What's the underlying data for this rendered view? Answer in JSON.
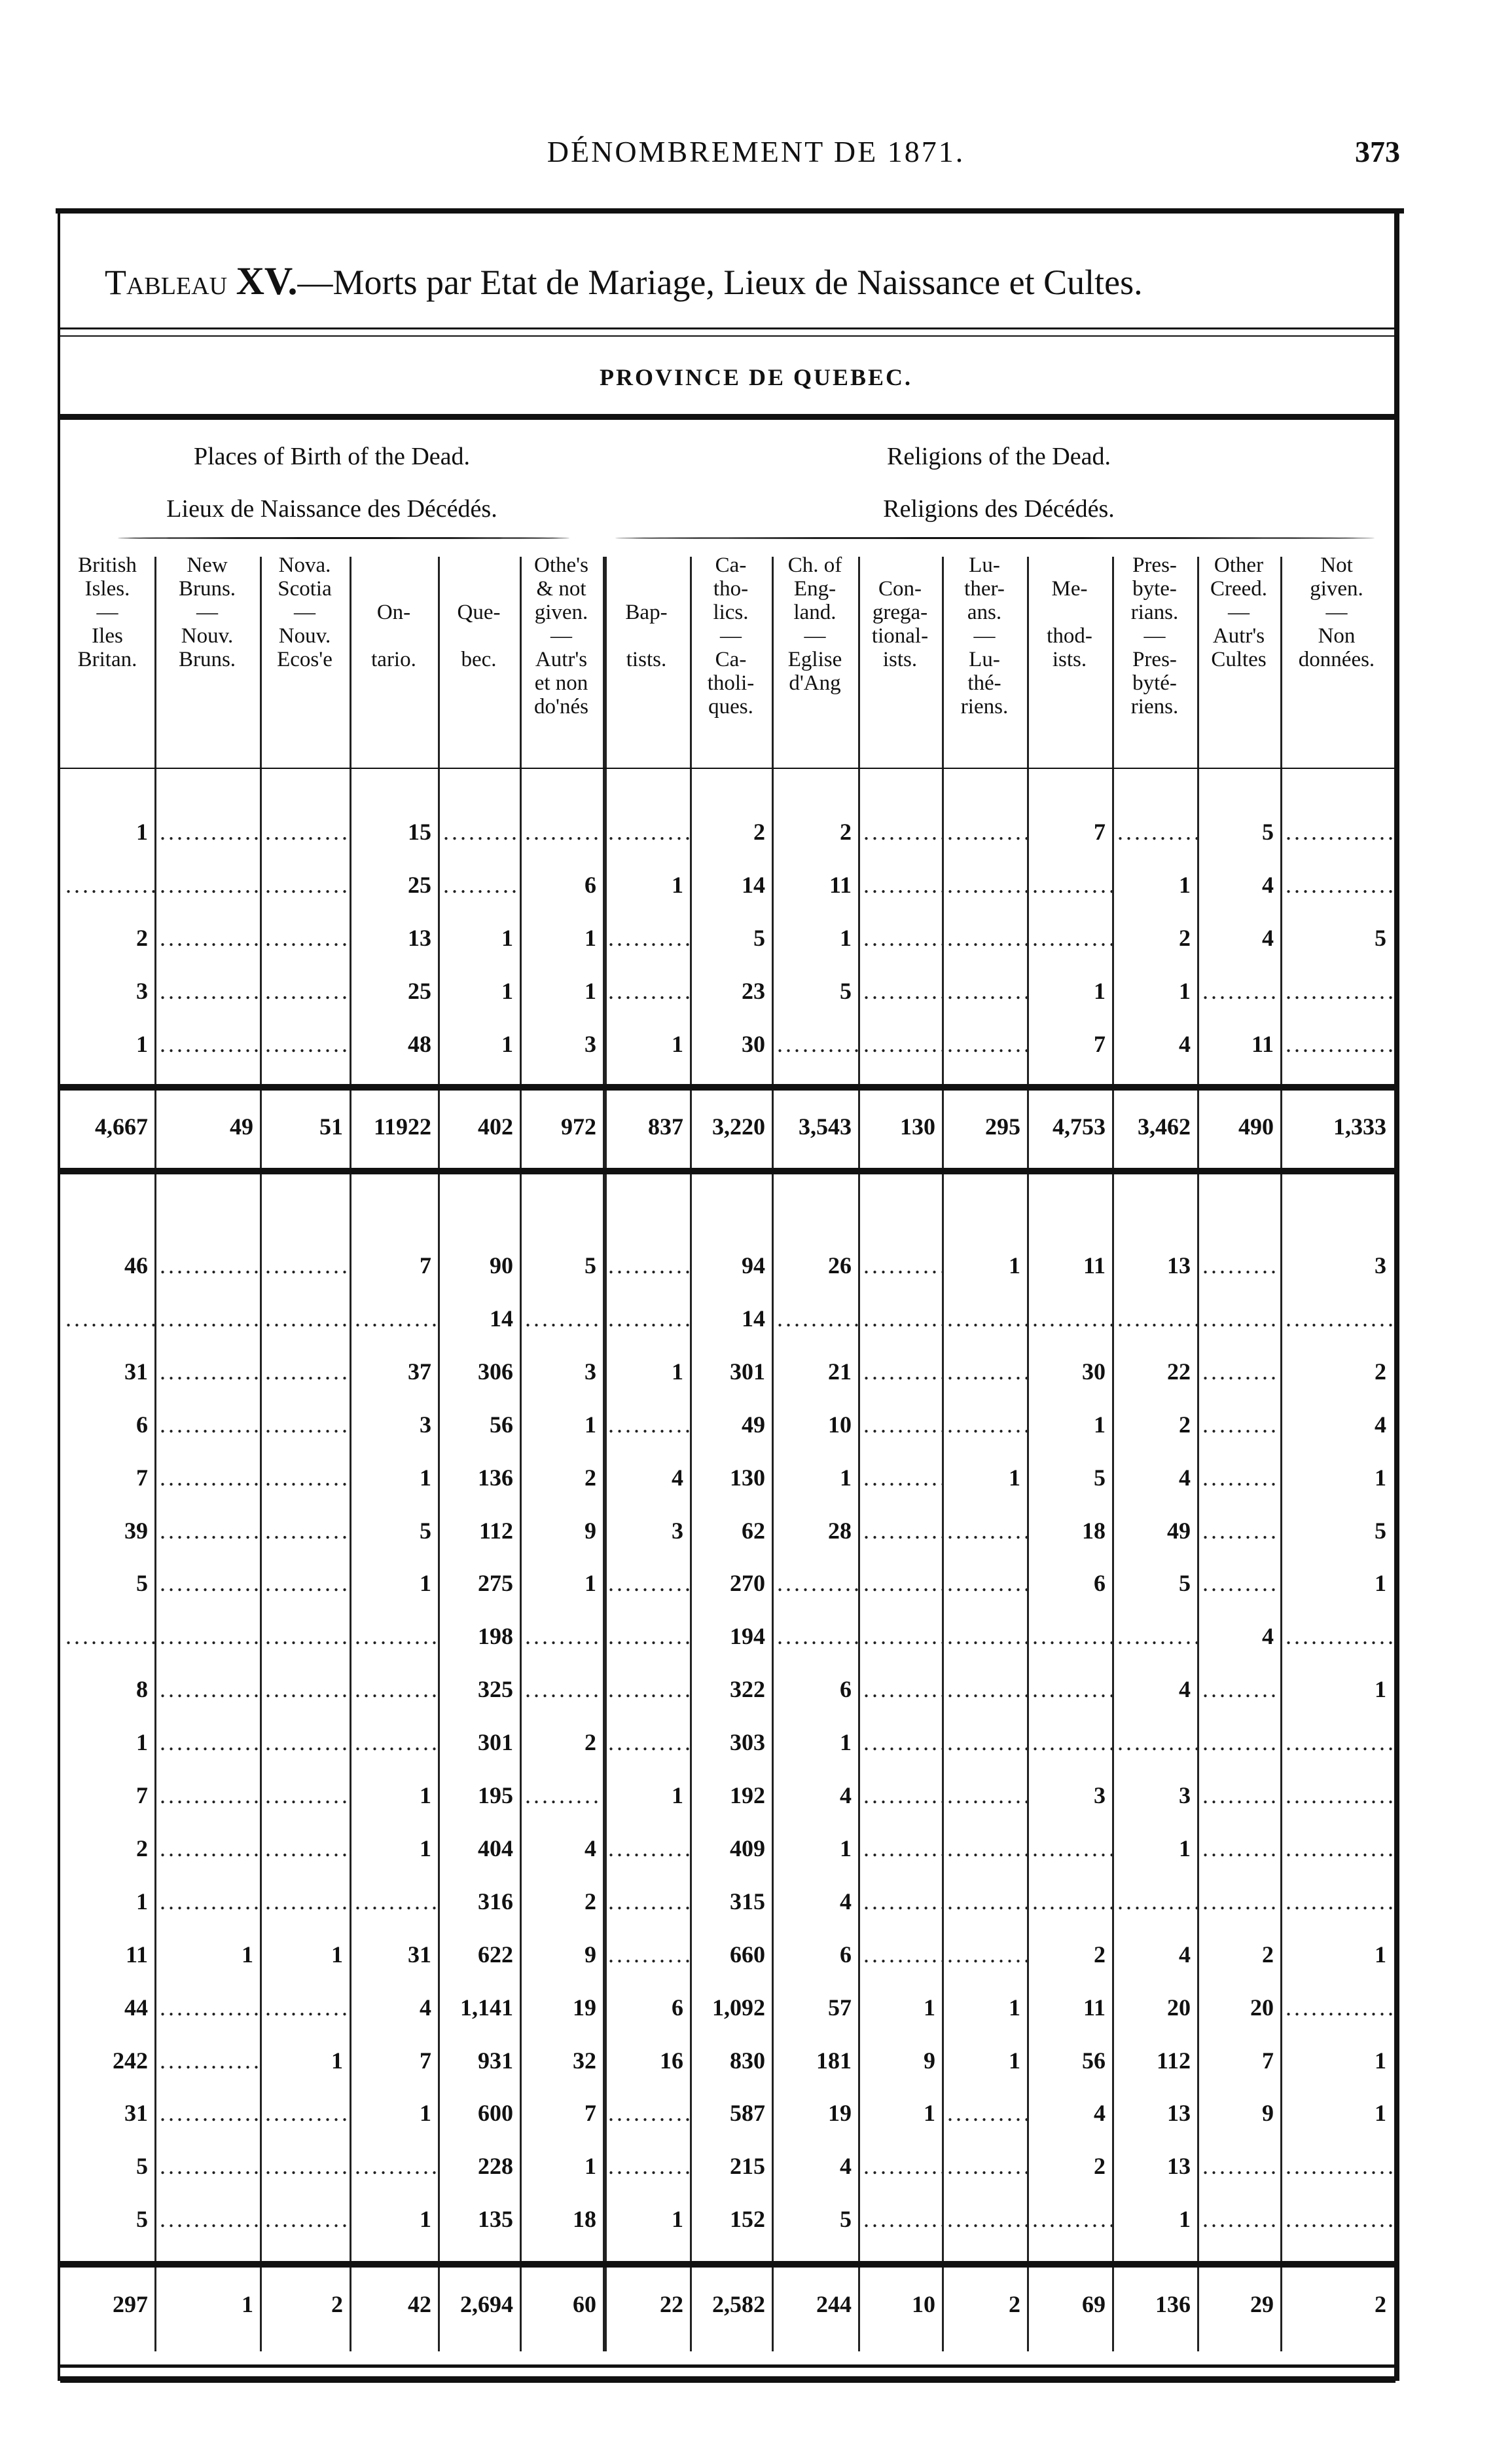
{
  "running_head": "DÉNOMBREMENT DE 1871.",
  "page_number": "373",
  "title_prefix": "Tableau",
  "title_number": "XV.",
  "title_text": "—Morts par Etat de Mariage, Lieux de Naissance et Cultes.",
  "province": "PROVINCE DE QUEBEC.",
  "groups": {
    "birth_en": "Places of Birth of the Dead.",
    "birth_fr": "Lieux de Naissance des Décédés.",
    "religion_en": "Religions of the Dead.",
    "religion_fr": "Religions des Décédés."
  },
  "columns": [
    "British\nIsles.\n—\nIles\nBritan.",
    "New\nBruns.\n—\nNouv.\nBruns.",
    "Nova.\nScotia\n—\nNouv.\nEcos'e",
    "\n\nOn-\n\ntario.",
    "\n\nQue-\n\nbec.",
    "Othe's\n& not\ngiven.\n—\nAutr's\net non\ndo'nés",
    "\n\nBap-\n\ntists.",
    "Ca-\ntho-\nlics.\n—\nCa-\ntholi-\nques.",
    "Ch. of\nEng-\nland.\n—\nEglise\nd'Ang",
    "\nCon-\ngrega-\ntional-\nists.",
    "Lu-\nther-\nans.\n—\nLu-\nthé-\nriens.",
    "\nMe-\n\nthod-\nists.",
    "Pres-\nbyte-\nrians.\n—\nPres-\nbyté-\nriens.",
    "Other\nCreed.\n—\nAutr's\nCultes",
    "Not\ngiven.\n—\nNon\ndonnées."
  ],
  "upper_rows": [
    [
      "1",
      "",
      "",
      "15",
      "",
      "",
      "",
      "2",
      "2",
      "",
      "",
      "7",
      "",
      "5",
      ""
    ],
    [
      "",
      "",
      "",
      "25",
      "",
      "6",
      "1",
      "14",
      "11",
      "",
      "",
      "",
      "1",
      "4",
      ""
    ],
    [
      "2",
      "",
      "",
      "13",
      "1",
      "1",
      "",
      "5",
      "1",
      "",
      "",
      "",
      "2",
      "4",
      "5"
    ],
    [
      "3",
      "",
      "",
      "25",
      "1",
      "1",
      "",
      "23",
      "5",
      "",
      "",
      "1",
      "1",
      "",
      ""
    ],
    [
      "1",
      "",
      "",
      "48",
      "1",
      "3",
      "1",
      "30",
      "",
      "",
      "",
      "7",
      "4",
      "11",
      ""
    ]
  ],
  "upper_total": [
    "4,667",
    "49",
    "51",
    "11922",
    "402",
    "972",
    "837",
    "3,220",
    "3,543",
    "130",
    "295",
    "4,753",
    "3,462",
    "490",
    "1,333"
  ],
  "lower_rows": [
    [
      "46",
      "",
      "",
      "7",
      "90",
      "5",
      "",
      "94",
      "26",
      "",
      "1",
      "11",
      "13",
      "",
      "3"
    ],
    [
      "",
      "",
      "",
      "",
      "14",
      "",
      "",
      "14",
      "",
      "",
      "",
      "",
      "",
      "",
      ""
    ],
    [
      "31",
      "",
      "",
      "37",
      "306",
      "3",
      "1",
      "301",
      "21",
      "",
      "",
      "30",
      "22",
      "",
      "2"
    ],
    [
      "6",
      "",
      "",
      "3",
      "56",
      "1",
      "",
      "49",
      "10",
      "",
      "",
      "1",
      "2",
      "",
      "4"
    ],
    [
      "7",
      "",
      "",
      "1",
      "136",
      "2",
      "4",
      "130",
      "1",
      "",
      "1",
      "5",
      "4",
      "",
      "1"
    ],
    [
      "39",
      "",
      "",
      "5",
      "112",
      "9",
      "3",
      "62",
      "28",
      "",
      "",
      "18",
      "49",
      "",
      "5"
    ],
    [
      "5",
      "",
      "",
      "1",
      "275",
      "1",
      "",
      "270",
      "",
      "",
      "",
      "6",
      "5",
      "",
      "1"
    ],
    [
      "",
      "",
      "",
      "",
      "198",
      "",
      "",
      "194",
      "",
      "",
      "",
      "",
      "",
      "4",
      ""
    ],
    [
      "8",
      "",
      "",
      "",
      "325",
      "",
      "",
      "322",
      "6",
      "",
      "",
      "",
      "4",
      "",
      "1"
    ],
    [
      "1",
      "",
      "",
      "",
      "301",
      "2",
      "",
      "303",
      "1",
      "",
      "",
      "",
      "",
      "",
      ""
    ],
    [
      "7",
      "",
      "",
      "1",
      "195",
      "",
      "1",
      "192",
      "4",
      "",
      "",
      "3",
      "3",
      "",
      ""
    ],
    [
      "2",
      "",
      "",
      "1",
      "404",
      "4",
      "",
      "409",
      "1",
      "",
      "",
      "",
      "1",
      "",
      ""
    ],
    [
      "1",
      "",
      "",
      "",
      "316",
      "2",
      "",
      "315",
      "4",
      "",
      "",
      "",
      "",
      "",
      ""
    ],
    [
      "11",
      "1",
      "1",
      "31",
      "622",
      "9",
      "",
      "660",
      "6",
      "",
      "",
      "2",
      "4",
      "2",
      "1"
    ],
    [
      "44",
      "",
      "",
      "4",
      "1,141",
      "19",
      "6",
      "1,092",
      "57",
      "1",
      "1",
      "11",
      "20",
      "20",
      ""
    ],
    [
      "242",
      "",
      "1",
      "7",
      "931",
      "32",
      "16",
      "830",
      "181",
      "9",
      "1",
      "56",
      "112",
      "7",
      "1"
    ],
    [
      "31",
      "",
      "",
      "1",
      "600",
      "7",
      "",
      "587",
      "19",
      "1",
      "",
      "4",
      "13",
      "9",
      "1"
    ],
    [
      "5",
      "",
      "",
      "",
      "228",
      "1",
      "",
      "215",
      "4",
      "",
      "",
      "2",
      "13",
      "",
      ""
    ],
    [
      "5",
      "",
      "",
      "1",
      "135",
      "18",
      "1",
      "152",
      "5",
      "",
      "",
      "",
      "1",
      "",
      ""
    ]
  ],
  "lower_total": [
    "297",
    "1",
    "2",
    "42",
    "2,694",
    "60",
    "22",
    "2,582",
    "244",
    "10",
    "2",
    "69",
    "136",
    "29",
    "2"
  ]
}
